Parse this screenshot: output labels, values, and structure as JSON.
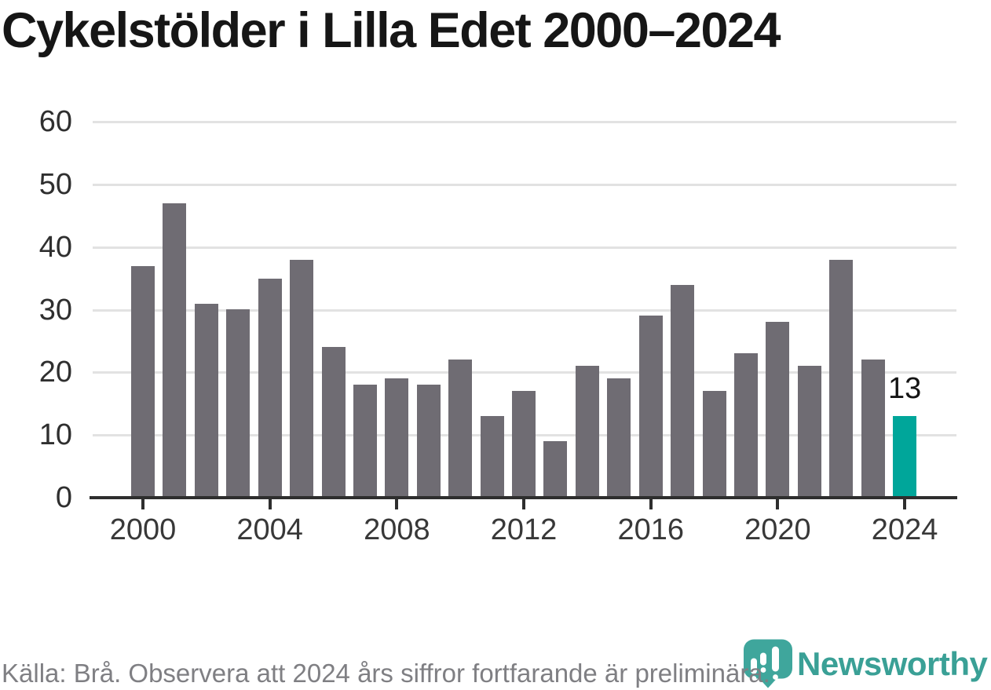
{
  "chart_data": {
    "type": "bar",
    "title": "Cykelstölder i Lilla Edet 2000–2024",
    "x": [
      2000,
      2001,
      2002,
      2003,
      2004,
      2005,
      2006,
      2007,
      2008,
      2009,
      2010,
      2011,
      2012,
      2013,
      2014,
      2015,
      2016,
      2017,
      2018,
      2019,
      2020,
      2021,
      2022,
      2023,
      2024
    ],
    "values": [
      37,
      47,
      31,
      30,
      35,
      38,
      24,
      18,
      19,
      18,
      22,
      13,
      17,
      9,
      21,
      19,
      29,
      34,
      17,
      23,
      28,
      21,
      38,
      22,
      13
    ],
    "ylim": [
      0,
      60
    ],
    "yticks": [
      0,
      10,
      20,
      30,
      40,
      50,
      60
    ],
    "xticks": [
      2000,
      2004,
      2008,
      2012,
      2016,
      2020,
      2024
    ],
    "grid": true,
    "legend": false,
    "bar_color": "#6F6C73",
    "highlight_index": 24,
    "highlight_color": "#00A69A",
    "highlight_label": "13",
    "xlabel": "",
    "ylabel": ""
  },
  "footer": {
    "source_text": "Källa: Brå. Observera att 2024 års siffror fortfarande är preliminära."
  },
  "logo": {
    "text": "Newsworthy",
    "icon": "newsworthy-bubble-chart-icon",
    "text_color": "#3AA096",
    "icon_color": "#3FA69C"
  }
}
